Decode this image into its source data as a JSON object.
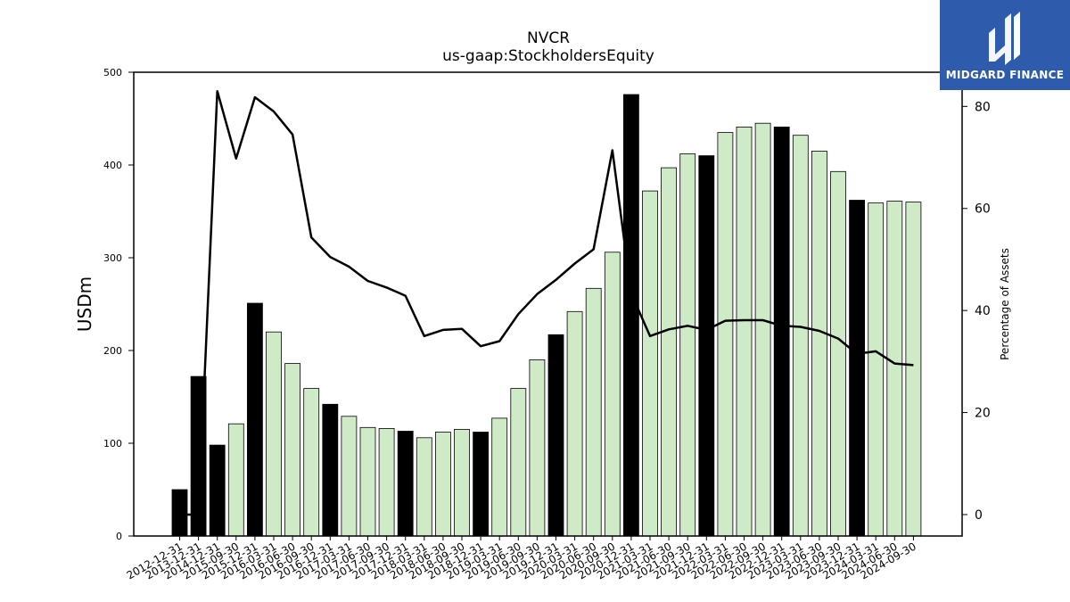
{
  "logo": {
    "text": "MIDGARD FINANCE",
    "background": "#2e5bab",
    "mark": "stylized-M-logo"
  },
  "chart_data": {
    "type": "bar",
    "title": "NVCR",
    "subtitle": "us-gaap:StockholdersEquity",
    "ylabel": "USDm",
    "ylabel_right": "Percentage of Assets",
    "ylim": [
      0,
      500
    ],
    "ylim_right": [
      -4.2,
      86.7
    ],
    "yticks": [
      0,
      100,
      200,
      300,
      400,
      500
    ],
    "yticks_right": [
      0,
      20,
      40,
      60,
      80
    ],
    "colors": {
      "annual": "#000000",
      "quarter": "#cfeac7",
      "line": "#000000"
    },
    "categories": [
      "2012-12-31",
      "2013-12-31",
      "2014-12-31",
      "2015-09-30",
      "2015-12-31",
      "2016-03-31",
      "2016-06-30",
      "2016-09-30",
      "2016-12-31",
      "2017-03-31",
      "2017-06-30",
      "2017-09-30",
      "2017-12-31",
      "2018-03-31",
      "2018-06-30",
      "2018-09-30",
      "2018-12-31",
      "2019-03-31",
      "2019-06-30",
      "2019-09-30",
      "2019-12-31",
      "2020-03-31",
      "2020-06-30",
      "2020-09-30",
      "2020-12-31",
      "2021-03-31",
      "2021-06-30",
      "2021-09-30",
      "2021-12-31",
      "2022-03-31",
      "2022-06-30",
      "2022-09-30",
      "2022-12-31",
      "2023-03-31",
      "2023-06-30",
      "2023-09-30",
      "2023-12-31",
      "2024-03-31",
      "2024-06-30",
      "2024-09-30"
    ],
    "series": [
      {
        "values": [
          50,
          172,
          98,
          121,
          251,
          220,
          186,
          159,
          142,
          129,
          117,
          116,
          113,
          106,
          112,
          115,
          112,
          127,
          159,
          190,
          217,
          242,
          267,
          306,
          476,
          372,
          397,
          412,
          410,
          435,
          441,
          445,
          441,
          432,
          415,
          393,
          362,
          359,
          361,
          360
        ],
        "annual": [
          true,
          true,
          true,
          false,
          true,
          false,
          false,
          false,
          true,
          false,
          false,
          false,
          true,
          false,
          false,
          false,
          true,
          false,
          false,
          false,
          true,
          false,
          false,
          false,
          true,
          false,
          false,
          false,
          true,
          false,
          false,
          false,
          true,
          false,
          false,
          false,
          true,
          false,
          false,
          false
        ]
      },
      {
        "axis": "right",
        "type": "line",
        "values": [
          0,
          0,
          83,
          69.8,
          81.8,
          79,
          74.5,
          54.3,
          50.5,
          48.6,
          45.8,
          44.5,
          42.9,
          35,
          36.2,
          36.4,
          33,
          34,
          39.3,
          43.2,
          46,
          49.2,
          52,
          71.4,
          43.3,
          35,
          36.3,
          37,
          36.2,
          38,
          38.1,
          38.1,
          37,
          36.8,
          36,
          34.5,
          31.5,
          32,
          29.6,
          29.3
        ]
      }
    ]
  }
}
